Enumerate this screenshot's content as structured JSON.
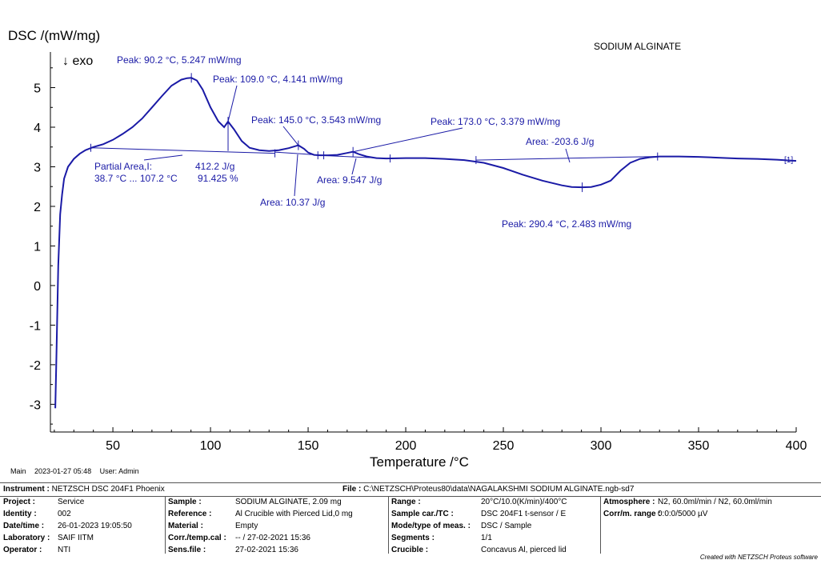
{
  "chart_data": {
    "type": "line",
    "title": "SODIUM ALGINATE",
    "ylabel": "DSC /(mW/mg)",
    "exo_label": "↓ exo",
    "xlabel": "Temperature /°C",
    "xlim": [
      18,
      400
    ],
    "ylim": [
      -3.7,
      5.9
    ],
    "x_ticks": [
      50,
      100,
      150,
      200,
      250,
      300,
      350,
      400
    ],
    "y_ticks": [
      5,
      4,
      3,
      2,
      1,
      0,
      -1,
      -2,
      -3
    ],
    "curve_tag": "[1]",
    "series": [
      {
        "name": "DSC",
        "x": [
          20.5,
          21,
          22,
          23,
          24,
          25,
          27,
          30,
          33,
          36,
          40,
          45,
          50,
          55,
          60,
          65,
          70,
          75,
          80,
          85,
          88,
          90.2,
          93,
          96,
          100,
          104,
          107,
          109,
          112,
          116,
          120,
          125,
          130,
          135,
          140,
          145,
          148,
          150,
          153,
          156,
          160,
          165,
          170,
          173,
          176,
          180,
          185,
          190,
          200,
          210,
          220,
          230,
          240,
          250,
          260,
          270,
          280,
          285,
          290.4,
          295,
          300,
          305,
          310,
          315,
          320,
          325,
          330,
          340,
          350,
          360,
          370,
          380,
          390,
          400
        ],
        "y": [
          -3.1,
          -2.0,
          0.5,
          1.8,
          2.3,
          2.7,
          3.0,
          3.2,
          3.33,
          3.42,
          3.5,
          3.57,
          3.68,
          3.83,
          4.0,
          4.22,
          4.5,
          4.78,
          5.05,
          5.2,
          5.24,
          5.247,
          5.18,
          4.95,
          4.5,
          4.15,
          4.0,
          4.141,
          3.95,
          3.65,
          3.48,
          3.42,
          3.4,
          3.42,
          3.47,
          3.543,
          3.45,
          3.36,
          3.3,
          3.29,
          3.29,
          3.3,
          3.35,
          3.379,
          3.32,
          3.26,
          3.22,
          3.21,
          3.22,
          3.22,
          3.2,
          3.17,
          3.1,
          2.97,
          2.8,
          2.65,
          2.53,
          2.49,
          2.483,
          2.49,
          2.55,
          2.65,
          2.9,
          3.1,
          3.2,
          3.24,
          3.26,
          3.26,
          3.25,
          3.23,
          3.21,
          3.2,
          3.18,
          3.15
        ]
      }
    ],
    "baselines": [
      {
        "name": "partial-area-baseline",
        "x": [
          38.7,
          133
        ],
        "y": [
          3.48,
          3.34
        ]
      },
      {
        "name": "area-10-baseline",
        "x": [
          133,
          158
        ],
        "y": [
          3.37,
          3.29
        ]
      },
      {
        "name": "area-9-baseline",
        "x": [
          155,
          192
        ],
        "y": [
          3.29,
          3.21
        ]
      },
      {
        "name": "area-203-baseline",
        "x": [
          236,
          329
        ],
        "y": [
          3.17,
          3.26
        ]
      }
    ],
    "annotations": [
      {
        "text": "Peak: 90.2 °C, 5.247 mW/mg",
        "x": 90.2,
        "y": 5.247
      },
      {
        "text": "Peak: 109.0 °C, 4.141 mW/mg",
        "x": 109.0,
        "y": 4.141
      },
      {
        "text": "Peak: 145.0 °C, 3.543 mW/mg",
        "x": 145.0,
        "y": 3.543
      },
      {
        "text": "Peak: 173.0 °C, 3.379 mW/mg",
        "x": 173.0,
        "y": 3.379
      },
      {
        "text": "Peak: 290.4 °C, 2.483 mW/mg",
        "x": 290.4,
        "y": 2.483
      },
      {
        "text": "Area: -203.6 J/g",
        "x": 280,
        "y": 3.22
      },
      {
        "text": "Area: 9.547 J/g",
        "x": 173,
        "y": 3.27
      },
      {
        "text": "Area: 10.37 J/g",
        "x": 145,
        "y": 3.3
      },
      {
        "text": "Partial Area,I:",
        "x": 75,
        "y": 3.45
      },
      {
        "text": "412.2 J/g",
        "x": 75,
        "y": 3.45
      },
      {
        "text": "38.7 °C ... 107.2 °C",
        "x": 75,
        "y": 3.45
      },
      {
        "text": "91.425 %",
        "x": 75,
        "y": 3.45
      }
    ]
  },
  "footer": {
    "main": "Main",
    "timestamp": "2023-01-27 05:48",
    "user": "User: Admin",
    "instrument_label": "Instrument :",
    "instrument": "NETZSCH DSC 204F1 Phoenix",
    "file_label": "File :",
    "file": "C:\\NETZSCH\\Proteus80\\data\\NAGALAKSHMI SODIUM ALGINATE.ngb-sd7",
    "col1": [
      {
        "k": "Project :",
        "v": "Service"
      },
      {
        "k": "Identity :",
        "v": "002"
      },
      {
        "k": "Date/time :",
        "v": "26-01-2023 19:05:50"
      },
      {
        "k": "Laboratory :",
        "v": "SAIF IITM"
      },
      {
        "k": "Operator :",
        "v": "NTI"
      }
    ],
    "col2": [
      {
        "k": "Sample :",
        "v": "SODIUM ALGINATE, 2.09 mg"
      },
      {
        "k": "Reference :",
        "v": "Al Crucible with Pierced Lid,0 mg"
      },
      {
        "k": "Material :",
        "v": "Empty"
      },
      {
        "k": "Corr./temp.cal :",
        "v": "-- / 27-02-2021 15:36"
      },
      {
        "k": "Sens.file :",
        "v": "27-02-2021 15:36"
      }
    ],
    "col3": [
      {
        "k": "Range :",
        "v": "20°C/10.0(K/min)/400°C"
      },
      {
        "k": "Sample car./TC :",
        "v": "DSC 204F1 t-sensor / E"
      },
      {
        "k": "Mode/type of meas. :",
        "v": "DSC / Sample"
      },
      {
        "k": "Segments :",
        "v": "1/1"
      },
      {
        "k": "Crucible :",
        "v": "Concavus Al, pierced lid"
      }
    ],
    "col4": [
      {
        "k": "Atmosphere :",
        "v": "N2, 60.0ml/min / N2, 60.0ml/min"
      },
      {
        "k": "Corr/m. range :",
        "v": "0:0:0/5000 µV"
      }
    ],
    "credit": "Created with NETZSCH Proteus software"
  },
  "colors": {
    "curve": "#1a1aa6",
    "axis": "#000000",
    "text_blue": "#1a1aa6"
  }
}
